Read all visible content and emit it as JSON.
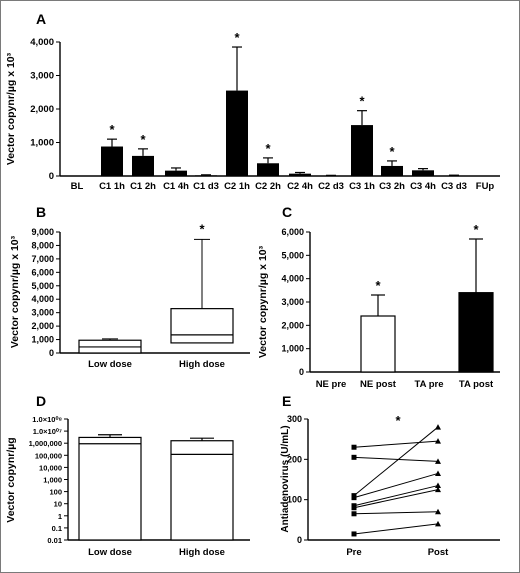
{
  "chart_data": [
    {
      "panel": "A",
      "type": "bar",
      "ylabel": "Vector copynr/µg x 10³",
      "ylim": [
        0,
        4000
      ],
      "yticks": [
        "0",
        "1,000",
        "2,000",
        "3,000",
        "4,000"
      ],
      "categories": [
        "BL",
        "C1 1h",
        "C1 2h",
        "C1 4h",
        "C1 d3",
        "C2 1h",
        "C2 2h",
        "C2 4h",
        "C2 d3",
        "C3 1h",
        "C3 2h",
        "C3 4h",
        "C3 d3",
        "FUp"
      ],
      "values": [
        0,
        880,
        600,
        160,
        20,
        2550,
        380,
        70,
        10,
        1520,
        300,
        170,
        15,
        0
      ],
      "errors": [
        0,
        220,
        210,
        80,
        15,
        1300,
        160,
        35,
        10,
        430,
        150,
        50,
        10,
        0
      ],
      "significant": [
        "",
        "*",
        "*",
        "",
        "",
        "*",
        "*",
        "",
        "",
        "*",
        "*",
        "",
        "",
        ""
      ],
      "bar_color": "#000000"
    },
    {
      "panel": "B",
      "type": "box",
      "ylabel": "Vector copynr/µg x 10³",
      "ylim": [
        0,
        9000
      ],
      "yticks": [
        "0",
        "1,000",
        "2,000",
        "3,000",
        "4,000",
        "5,000",
        "6,000",
        "7,000",
        "8,000",
        "9,000"
      ],
      "categories": [
        "Low dose",
        "High dose"
      ],
      "boxes": [
        {
          "min": 0,
          "q1": 0,
          "median": 450,
          "q3": 950,
          "max": 1050,
          "mark": ""
        },
        {
          "min": 0,
          "q1": 750,
          "median": 1350,
          "q3": 3300,
          "max": 8450,
          "mark": "*"
        }
      ]
    },
    {
      "panel": "C",
      "type": "bar",
      "ylabel": "Vector copynr/µg x 10³",
      "ylim": [
        0,
        6000
      ],
      "yticks": [
        "0",
        "1,000",
        "2,000",
        "3,000",
        "4,000",
        "5,000",
        "6,000"
      ],
      "categories": [
        "NE pre",
        "NE post",
        "TA pre",
        "TA post"
      ],
      "values": [
        0,
        2400,
        0,
        3400
      ],
      "errors": [
        0,
        900,
        0,
        2300
      ],
      "fills": [
        "#ffffff",
        "#ffffff",
        "#000000",
        "#000000"
      ],
      "significant": [
        "",
        "*",
        "",
        "*"
      ]
    },
    {
      "panel": "D",
      "type": "bar",
      "ylabel": "Vector copynr/µg",
      "log_scale": true,
      "ylim": [
        0.01,
        100000000
      ],
      "yticks": [
        "0.01",
        "0.1",
        "1",
        "10",
        "100",
        "1,000",
        "10,000",
        "100,000",
        "1,000,000",
        "1.0×10⁰⁷",
        "1.0×10⁰⁸"
      ],
      "categories": [
        "Low dose",
        "High dose"
      ],
      "values": [
        3000000,
        1600000
      ],
      "errors": [
        2000000,
        1000000
      ],
      "inner_line": [
        900000,
        120000
      ]
    },
    {
      "panel": "E",
      "type": "line",
      "ylabel": "Antiadenovirus (U/mL)",
      "ylim": [
        0,
        300
      ],
      "yticks": [
        "0",
        "100",
        "200",
        "300"
      ],
      "categories": [
        "Pre",
        "Post"
      ],
      "significance": "*",
      "pairs": [
        [
          230,
          245
        ],
        [
          205,
          195
        ],
        [
          110,
          280
        ],
        [
          105,
          165
        ],
        [
          85,
          135
        ],
        [
          80,
          125
        ],
        [
          65,
          70
        ],
        [
          15,
          40
        ]
      ]
    }
  ]
}
